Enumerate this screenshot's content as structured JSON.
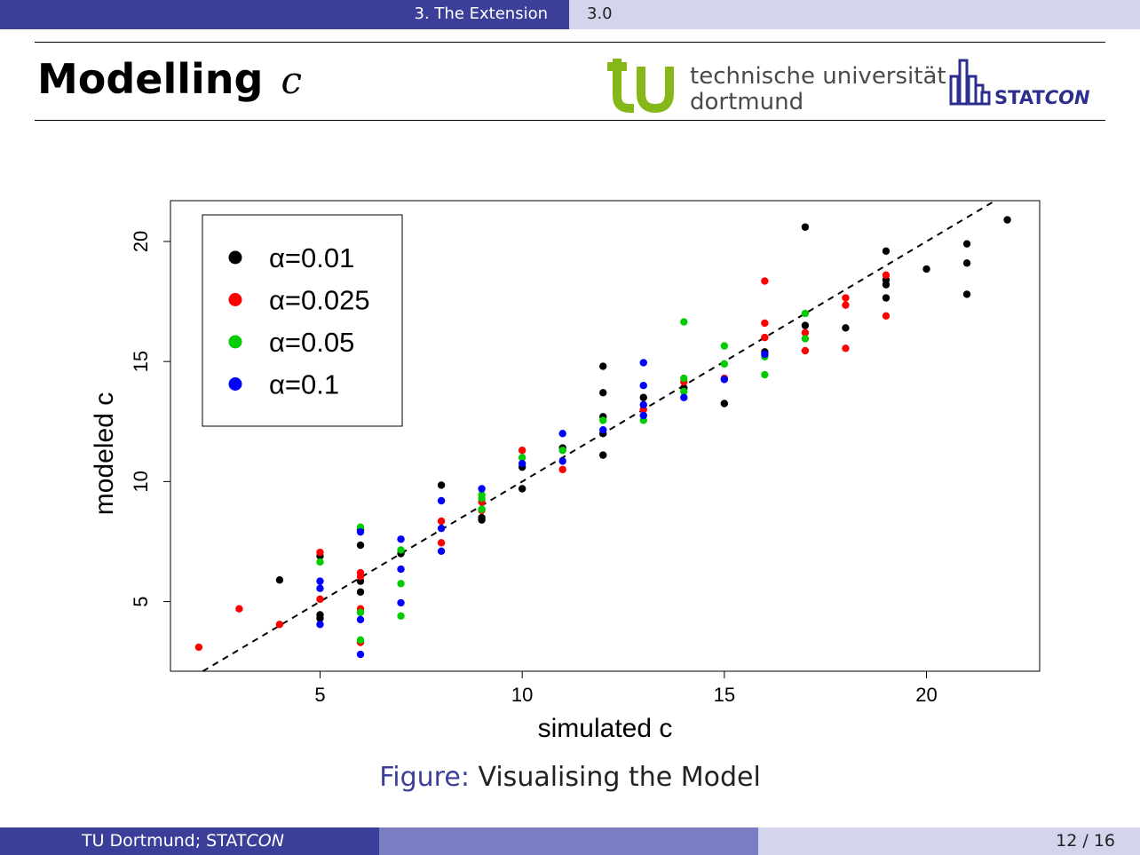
{
  "header": {
    "section": "3. The Extension",
    "subsection": "3.0"
  },
  "slide": {
    "title": "Modelling",
    "title_var": "c"
  },
  "logos": {
    "tu_line1": "technische universität",
    "tu_line2": "dortmund",
    "statcon_a": "STAT",
    "statcon_b": "CON"
  },
  "caption": {
    "label": "Figure:",
    "text": "Visualising the Model"
  },
  "footer": {
    "institute_a": "TU Dortmund; STAT",
    "institute_b": "CON",
    "pages": "12 / 16"
  },
  "colors": {
    "brand_dark": "#3c3f99",
    "brand_mid": "#7b7dc2",
    "brand_light": "#d4d5ec",
    "tu_green": "#84b818"
  },
  "chart_data": {
    "type": "scatter",
    "xlabel": "simulated c",
    "ylabel": "modeled c",
    "xlim": [
      1.3,
      22.8
    ],
    "ylim": [
      2.1,
      21.7
    ],
    "xticks": [
      5,
      10,
      15,
      20
    ],
    "yticks": [
      5,
      10,
      15,
      20
    ],
    "reference_line": "y = x (dashed)",
    "legend_position": "top-left",
    "series": [
      {
        "name": "α=0.01",
        "color": "#000000",
        "points": [
          [
            4,
            5.9
          ],
          [
            5,
            4.3
          ],
          [
            5,
            4.45
          ],
          [
            5,
            6.9
          ],
          [
            6,
            5.4
          ],
          [
            6,
            7.35
          ],
          [
            6,
            5.85
          ],
          [
            6,
            8.0
          ],
          [
            7,
            7.0
          ],
          [
            8,
            9.85
          ],
          [
            9,
            8.4
          ],
          [
            9,
            8.5
          ],
          [
            10,
            9.7
          ],
          [
            10,
            10.6
          ],
          [
            11,
            11.4
          ],
          [
            12,
            14.8
          ],
          [
            12,
            13.7
          ],
          [
            12,
            12.7
          ],
          [
            12,
            12.0
          ],
          [
            12,
            11.1
          ],
          [
            13,
            13.5
          ],
          [
            14,
            13.9
          ],
          [
            15,
            13.25
          ],
          [
            16,
            15.4
          ],
          [
            17,
            20.6
          ],
          [
            17,
            16.5
          ],
          [
            18,
            16.4
          ],
          [
            19,
            19.6
          ],
          [
            19,
            18.4
          ],
          [
            19,
            18.2
          ],
          [
            19,
            17.65
          ],
          [
            20,
            18.85
          ],
          [
            21,
            19.9
          ],
          [
            21,
            19.1
          ],
          [
            21,
            17.8
          ],
          [
            22,
            20.9
          ]
        ]
      },
      {
        "name": "α=0.025",
        "color": "#ff0000",
        "points": [
          [
            2,
            3.1
          ],
          [
            3,
            4.7
          ],
          [
            4,
            4.05
          ],
          [
            5,
            7.05
          ],
          [
            5,
            5.1
          ],
          [
            6,
            6.2
          ],
          [
            6,
            6.05
          ],
          [
            6,
            4.7
          ],
          [
            6,
            3.3
          ],
          [
            8,
            8.35
          ],
          [
            8,
            7.45
          ],
          [
            9,
            9.15
          ],
          [
            9,
            8.8
          ],
          [
            10,
            11.3
          ],
          [
            11,
            10.5
          ],
          [
            13,
            13.0
          ],
          [
            14,
            14.15
          ],
          [
            15,
            14.3
          ],
          [
            16,
            18.35
          ],
          [
            16,
            16.6
          ],
          [
            16,
            16.0
          ],
          [
            17,
            16.2
          ],
          [
            17,
            15.45
          ],
          [
            18,
            17.65
          ],
          [
            18,
            17.35
          ],
          [
            18,
            15.55
          ],
          [
            19,
            18.6
          ],
          [
            19,
            16.9
          ]
        ]
      },
      {
        "name": "α=0.05",
        "color": "#00cc00",
        "points": [
          [
            5,
            6.65
          ],
          [
            6,
            8.1
          ],
          [
            6,
            4.55
          ],
          [
            6,
            3.4
          ],
          [
            7,
            7.15
          ],
          [
            7,
            5.75
          ],
          [
            7,
            4.4
          ],
          [
            9,
            9.45
          ],
          [
            9,
            9.3
          ],
          [
            9,
            8.85
          ],
          [
            10,
            11.0
          ],
          [
            11,
            11.3
          ],
          [
            12,
            12.55
          ],
          [
            13,
            12.55
          ],
          [
            14,
            16.65
          ],
          [
            14,
            14.3
          ],
          [
            14,
            13.75
          ],
          [
            15,
            15.65
          ],
          [
            15,
            14.9
          ],
          [
            16,
            15.2
          ],
          [
            16,
            14.45
          ],
          [
            17,
            17.0
          ],
          [
            17,
            15.95
          ]
        ]
      },
      {
        "name": "α=0.1",
        "color": "#0000ff",
        "points": [
          [
            5,
            5.85
          ],
          [
            5,
            5.55
          ],
          [
            5,
            4.05
          ],
          [
            6,
            7.9
          ],
          [
            6,
            4.25
          ],
          [
            6,
            2.8
          ],
          [
            7,
            7.6
          ],
          [
            7,
            6.35
          ],
          [
            7,
            4.95
          ],
          [
            8,
            9.2
          ],
          [
            8,
            8.05
          ],
          [
            8,
            7.1
          ],
          [
            9,
            9.7
          ],
          [
            10,
            10.75
          ],
          [
            11,
            12.0
          ],
          [
            11,
            10.85
          ],
          [
            12,
            12.15
          ],
          [
            13,
            14.95
          ],
          [
            13,
            14.0
          ],
          [
            13,
            13.2
          ],
          [
            13,
            12.75
          ],
          [
            14,
            13.5
          ],
          [
            15,
            14.25
          ],
          [
            16,
            15.3
          ]
        ]
      }
    ]
  }
}
